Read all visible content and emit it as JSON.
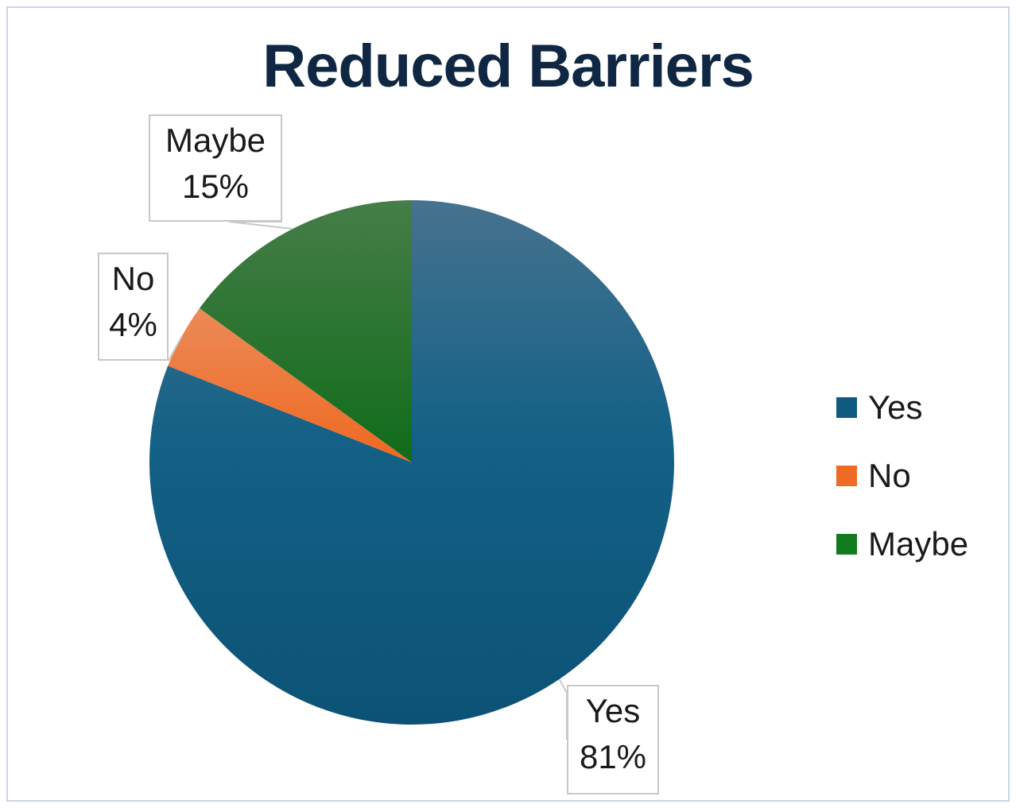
{
  "chart_data": {
    "type": "pie",
    "title": "Reduced Barriers",
    "categories": [
      "Yes",
      "No",
      "Maybe"
    ],
    "values": [
      81,
      4,
      15
    ],
    "data_labels": [
      {
        "name": "Yes",
        "percent": "81%"
      },
      {
        "name": "No",
        "percent": "4%"
      },
      {
        "name": "Maybe",
        "percent": "15%"
      }
    ],
    "colors": [
      "#0f5b80",
      "#ef6b25",
      "#137a1d"
    ],
    "legend": "right"
  }
}
